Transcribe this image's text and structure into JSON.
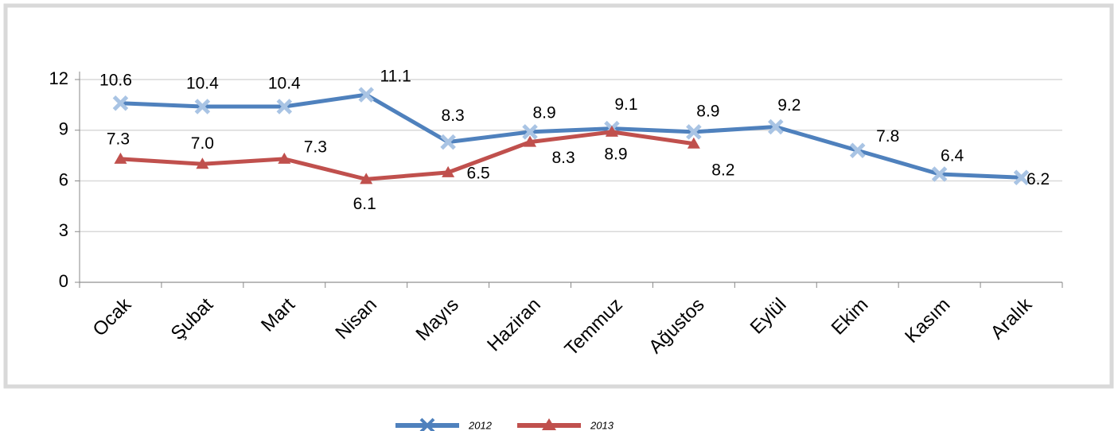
{
  "chart_data": {
    "type": "line",
    "categories": [
      "Ocak",
      "Şubat",
      "Mart",
      "Nisan",
      "Mayıs",
      "Haziran",
      "Temmuz",
      "Ağustos",
      "Eylül",
      "Ekim",
      "Kasım",
      "Aralık"
    ],
    "series": [
      {
        "name": "2012",
        "color": "#4f81bd",
        "marker": "x",
        "values": [
          10.6,
          10.4,
          10.4,
          11.1,
          8.3,
          8.9,
          9.1,
          8.9,
          9.2,
          7.8,
          6.4,
          6.2
        ]
      },
      {
        "name": "2013",
        "color": "#c0504d",
        "marker": "triangle",
        "values": [
          7.3,
          7,
          7.3,
          6.1,
          6.5,
          8.3,
          8.9,
          8.2,
          null,
          null,
          null,
          null
        ],
        "value_labels": [
          "7.3",
          "7.0",
          "7.3",
          "6.1",
          "6.5",
          "8.3",
          "8.9",
          "8.2",
          null,
          null,
          null,
          null
        ]
      }
    ],
    "ylim": [
      0,
      12
    ],
    "yticks": [
      0,
      3,
      6,
      9,
      12
    ],
    "grid": true,
    "legend": "bottom"
  }
}
